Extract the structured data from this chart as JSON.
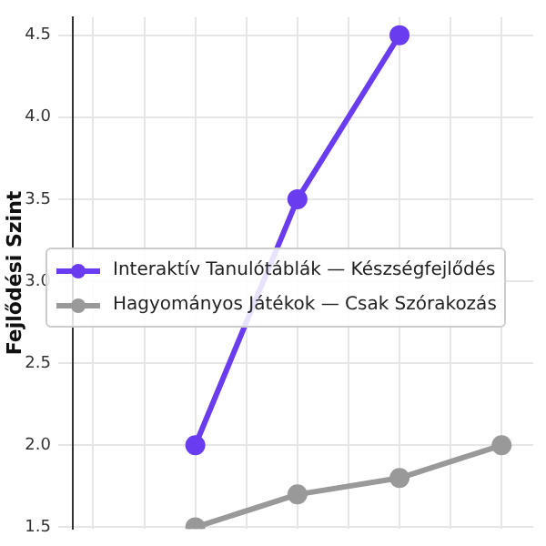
{
  "chart_data": {
    "type": "line",
    "ylabel": "Fejlődési Szint",
    "categories": [
      null,
      null,
      null,
      null,
      null
    ],
    "series": [
      {
        "name": "Interaktív Tanulótáblák — Készségfejlődés",
        "color": "#6a3cf0",
        "values": [
          null,
          2.0,
          3.5,
          4.5,
          null
        ]
      },
      {
        "name": "Hagyományos Játékok — Csak Szórakozás",
        "color": "#999999",
        "values": [
          null,
          1.5,
          1.7,
          1.8,
          2.0
        ]
      }
    ],
    "ylim": [
      1.49,
      4.61
    ],
    "yticks": [
      1.5,
      {
        "value": 2,
        "label": "2.0"
      },
      2.5,
      {
        "value": 3,
        "label": "3.0"
      },
      3.5,
      {
        "value": 4,
        "label": "4.0"
      },
      4.5
    ],
    "grid": true,
    "legend": "center",
    "marker": "circle",
    "line_style": "solid",
    "tick_labels": "y"
  }
}
